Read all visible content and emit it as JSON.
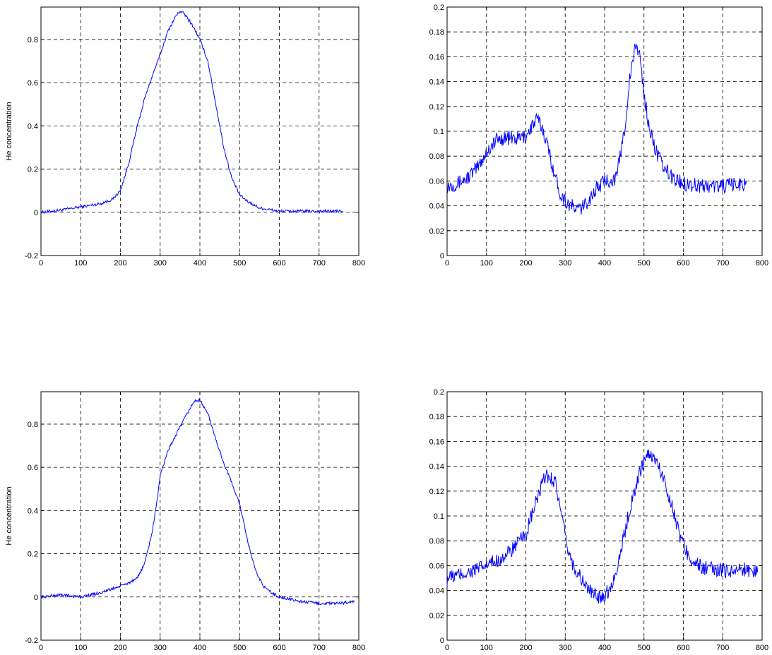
{
  "chart_data": [
    {
      "type": "line",
      "title": "",
      "xlabel": "",
      "ylabel": "He concentration",
      "xlim": [
        0,
        800
      ],
      "ylim": [
        -0.2,
        0.95
      ],
      "xticks": [
        0,
        100,
        200,
        300,
        400,
        500,
        600,
        700,
        800
      ],
      "yticks": [
        -0.2,
        0,
        0.2,
        0.4,
        0.6,
        0.8
      ],
      "grid": true,
      "line_color": "#0000ff",
      "series": [
        {
          "x": [
            0,
            50,
            100,
            150,
            180,
            200,
            220,
            240,
            260,
            280,
            300,
            320,
            340,
            350,
            360,
            380,
            400,
            420,
            440,
            460,
            480,
            500,
            520,
            550,
            600,
            650,
            700,
            760
          ],
          "y": [
            0.0,
            0.01,
            0.025,
            0.04,
            0.06,
            0.1,
            0.22,
            0.38,
            0.52,
            0.63,
            0.73,
            0.84,
            0.91,
            0.93,
            0.92,
            0.87,
            0.8,
            0.7,
            0.5,
            0.3,
            0.16,
            0.08,
            0.05,
            0.02,
            0.005,
            0.005,
            0.005,
            0.005
          ]
        }
      ]
    },
    {
      "type": "line",
      "title": "",
      "xlabel": "",
      "ylabel": "",
      "xlim": [
        0,
        800
      ],
      "ylim": [
        0,
        0.2
      ],
      "xticks": [
        0,
        100,
        200,
        300,
        400,
        500,
        600,
        700,
        800
      ],
      "yticks": [
        0,
        0.02,
        0.04,
        0.06,
        0.08,
        0.1,
        0.12,
        0.14,
        0.16,
        0.18,
        0.2
      ],
      "grid": true,
      "line_color": "#0000ff",
      "series": [
        {
          "x": [
            0,
            25,
            50,
            75,
            100,
            125,
            150,
            175,
            200,
            215,
            230,
            245,
            260,
            275,
            290,
            310,
            330,
            345,
            360,
            380,
            400,
            430,
            450,
            465,
            480,
            490,
            500,
            515,
            530,
            550,
            575,
            600,
            650,
            700,
            760
          ],
          "y": [
            0.056,
            0.058,
            0.062,
            0.07,
            0.083,
            0.093,
            0.095,
            0.094,
            0.096,
            0.104,
            0.11,
            0.1,
            0.082,
            0.063,
            0.048,
            0.041,
            0.037,
            0.039,
            0.045,
            0.054,
            0.06,
            0.062,
            0.1,
            0.145,
            0.17,
            0.16,
            0.13,
            0.1,
            0.085,
            0.07,
            0.062,
            0.058,
            0.056,
            0.056,
            0.058
          ]
        }
      ]
    },
    {
      "type": "line",
      "title": "",
      "xlabel": "",
      "ylabel": "He concentration",
      "xlim": [
        0,
        800
      ],
      "ylim": [
        -0.2,
        0.95
      ],
      "xticks": [
        0,
        100,
        200,
        300,
        400,
        500,
        600,
        700,
        800
      ],
      "yticks": [
        -0.2,
        0,
        0.2,
        0.4,
        0.6,
        0.8
      ],
      "grid": true,
      "line_color": "#0000ff",
      "series": [
        {
          "x": [
            0,
            50,
            100,
            150,
            200,
            240,
            260,
            280,
            290,
            300,
            320,
            340,
            360,
            380,
            390,
            400,
            420,
            440,
            460,
            480,
            500,
            520,
            540,
            560,
            580,
            600,
            650,
            700,
            750,
            790
          ],
          "y": [
            0.0,
            0.01,
            0.0,
            0.02,
            0.05,
            0.08,
            0.15,
            0.3,
            0.42,
            0.56,
            0.68,
            0.75,
            0.82,
            0.89,
            0.91,
            0.91,
            0.85,
            0.73,
            0.62,
            0.53,
            0.43,
            0.26,
            0.12,
            0.05,
            0.02,
            0.0,
            -0.02,
            -0.03,
            -0.03,
            -0.02
          ]
        }
      ]
    },
    {
      "type": "line",
      "title": "",
      "xlabel": "",
      "ylabel": "",
      "xlim": [
        0,
        800
      ],
      "ylim": [
        0,
        0.2
      ],
      "xticks": [
        0,
        100,
        200,
        300,
        400,
        500,
        600,
        700,
        800
      ],
      "yticks": [
        0,
        0.02,
        0.04,
        0.06,
        0.08,
        0.1,
        0.12,
        0.14,
        0.16,
        0.18,
        0.2
      ],
      "grid": true,
      "line_color": "#0000ff",
      "series": [
        {
          "x": [
            0,
            50,
            100,
            150,
            200,
            225,
            250,
            275,
            290,
            305,
            320,
            340,
            360,
            380,
            400,
            420,
            440,
            460,
            480,
            500,
            515,
            530,
            550,
            570,
            590,
            610,
            630,
            650,
            700,
            750,
            790
          ],
          "y": [
            0.05,
            0.054,
            0.06,
            0.068,
            0.085,
            0.11,
            0.133,
            0.128,
            0.1,
            0.075,
            0.06,
            0.05,
            0.04,
            0.035,
            0.036,
            0.045,
            0.07,
            0.1,
            0.125,
            0.145,
            0.15,
            0.145,
            0.13,
            0.11,
            0.085,
            0.07,
            0.062,
            0.058,
            0.056,
            0.057,
            0.055
          ]
        }
      ]
    }
  ]
}
